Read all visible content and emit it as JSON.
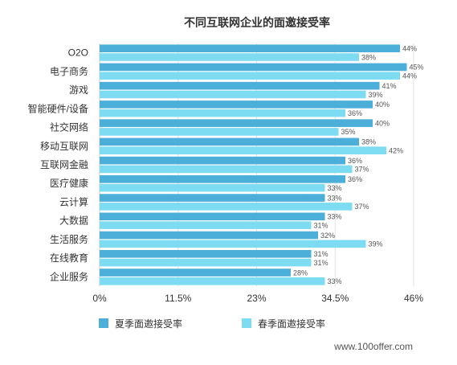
{
  "chart_data": {
    "type": "bar",
    "orientation": "horizontal",
    "title": "不同互联网企业的面邀接受率",
    "categories": [
      "O2O",
      "电子商务",
      "游戏",
      "智能硬件/设备",
      "社交网络",
      "移动互联网",
      "互联网金融",
      "医疗健康",
      "云计算",
      "大数据",
      "生活服务",
      "在线教育",
      "企业服务"
    ],
    "series": [
      {
        "name": "夏季面邀接受率",
        "color": "#4BAFD9",
        "values": [
          44,
          45,
          41,
          40,
          40,
          38,
          36,
          36,
          33,
          33,
          32,
          31,
          28
        ],
        "labels": [
          "44%",
          "45%",
          "41%",
          "40%",
          "40%",
          "38%",
          "36%",
          "36%",
          "33%",
          "33%",
          "32%",
          "31%",
          "28%"
        ]
      },
      {
        "name": "春季面邀接受率",
        "color": "#7DDCF2",
        "values": [
          38,
          44,
          39,
          36,
          35,
          42,
          37,
          33,
          37,
          31,
          39,
          31,
          33
        ],
        "labels": [
          "38%",
          "44%",
          "39%",
          "36%",
          "35%",
          "42%",
          "37%",
          "33%",
          "37%",
          "31%",
          "39%",
          "31%",
          "33%"
        ]
      }
    ],
    "xlim": [
      0,
      46
    ],
    "xticks": [
      0,
      11.5,
      23,
      34.5,
      46
    ],
    "xtick_labels": [
      "0%",
      "11.5%",
      "23%",
      "34.5%",
      "46%"
    ],
    "grid": true,
    "legend_position": "bottom-left"
  },
  "source": "www.100offer.com"
}
